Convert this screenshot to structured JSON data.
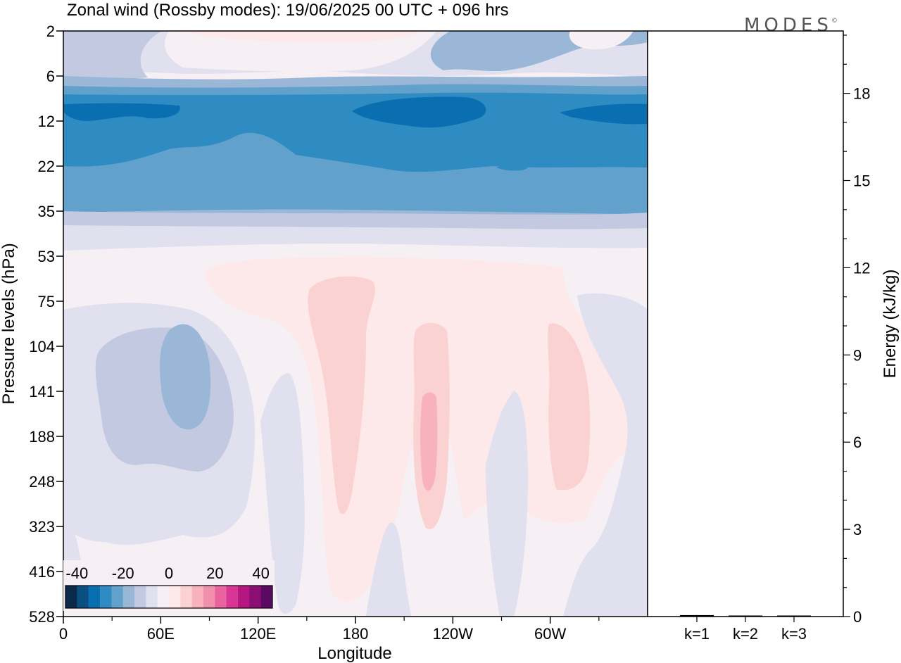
{
  "title": "Zonal wind (Rossby modes):  19/06/2025  00 UTC  + 096 hrs",
  "logo": "MODES",
  "logo_mark": "©",
  "chart_data": [
    {
      "type": "heatmap",
      "title": "Zonal wind (Rossby modes):  19/06/2025  00 UTC  + 096 hrs",
      "xlabel": "Longitude",
      "ylabel": "Pressure levels (hPa)",
      "x_ticks": [
        "0",
        "60E",
        "120E",
        "180",
        "120W",
        "60W"
      ],
      "x_tick_values": [
        0,
        60,
        120,
        180,
        240,
        300
      ],
      "xlim": [
        0,
        360
      ],
      "y_ticks": [
        "2",
        "6",
        "12",
        "22",
        "35",
        "53",
        "75",
        "104",
        "141",
        "188",
        "248",
        "323",
        "416",
        "528"
      ],
      "y_scale": "log-like, inverted (surface at bottom)",
      "colorbar": {
        "tick_labels": [
          "-40",
          "-20",
          "0",
          "20",
          "40"
        ],
        "tick_values": [
          -40,
          -20,
          0,
          20,
          40
        ],
        "levels": [
          -45,
          -40,
          -35,
          -30,
          -25,
          -20,
          -15,
          -10,
          -5,
          0,
          5,
          10,
          15,
          20,
          25,
          30,
          35,
          40,
          45
        ],
        "colors": [
          "#0b2a4a",
          "#0b4f82",
          "#0a6fb1",
          "#2f8cc2",
          "#62a1cc",
          "#9ab7d7",
          "#c2c9e1",
          "#e0e0ee",
          "#f6f0f4",
          "#fde9e9",
          "#fbd2d2",
          "#f7b2bb",
          "#f28fae",
          "#ea63a0",
          "#d93592",
          "#b5167f",
          "#8a0f72",
          "#5a0a63"
        ]
      },
      "bands": [
        {
          "level": "2-6 hPa",
          "value": -10
        },
        {
          "level": "6-12 hPa",
          "value": -25
        },
        {
          "level": "12-22 hPa",
          "value": -35
        },
        {
          "level": "22-35 hPa",
          "value": -25
        },
        {
          "level": "35-53 hPa",
          "value": -10
        },
        {
          "level": "53-528 hPa",
          "value": 0
        }
      ],
      "features": [
        {
          "desc": "easterly core",
          "lon_range": [
            50,
            90
          ],
          "level": "104-188 hPa",
          "value": -20
        },
        {
          "desc": "westerly max",
          "lon_range": [
            220,
            235
          ],
          "level": "141-248 hPa",
          "value": 15
        },
        {
          "desc": "westerly",
          "lon_range": [
            300,
            325
          ],
          "level": "104-248 hPa",
          "value": 5
        }
      ]
    },
    {
      "type": "bar",
      "ylabel": "Energy (kJ/kg)",
      "ylim": [
        0,
        20
      ],
      "y_ticks": [
        0,
        3,
        6,
        9,
        12,
        15,
        18
      ],
      "categories": [
        "k=1",
        "k=2",
        "k=3"
      ],
      "values": [
        0.05,
        0.03,
        0.02
      ]
    }
  ]
}
